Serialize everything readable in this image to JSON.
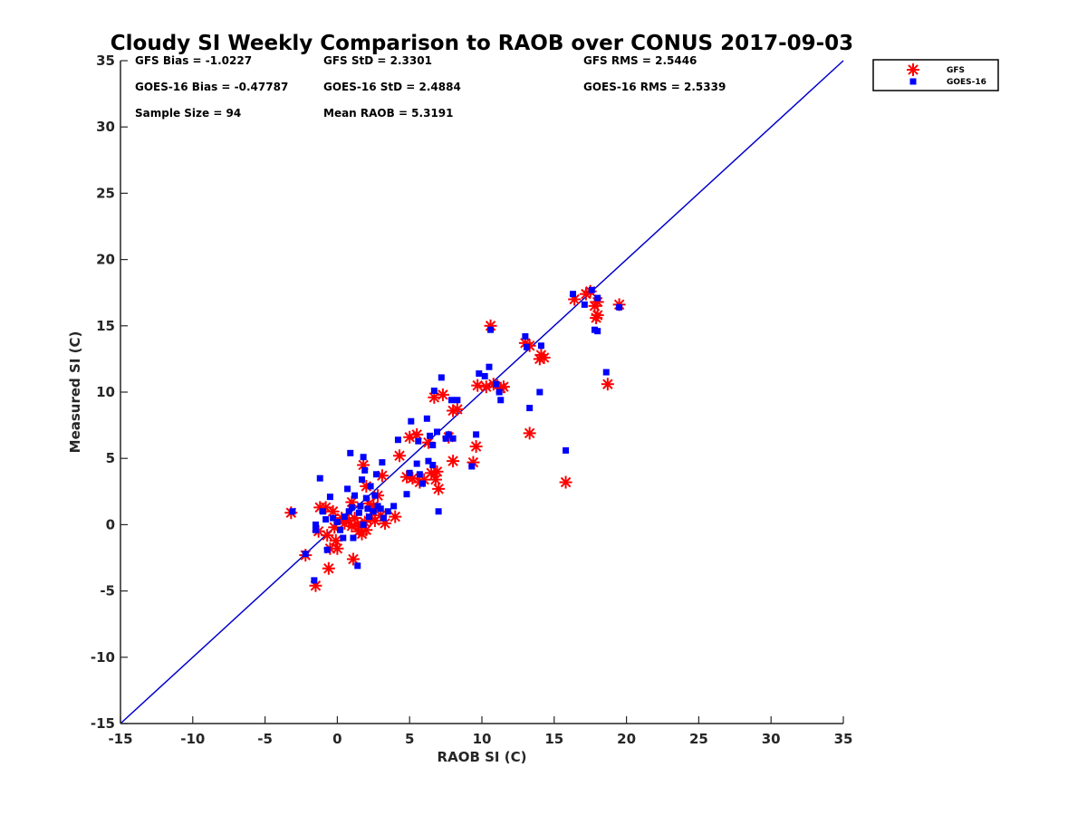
{
  "chart_data": {
    "type": "scatter",
    "title": "Cloudy SI Weekly Comparison to RAOB over CONUS 2017-09-03",
    "xlabel": "RAOB SI (C)",
    "ylabel": "Measured SI (C)",
    "xlim": [
      -15,
      35
    ],
    "ylim": [
      -15,
      35
    ],
    "xticks": [
      -15,
      -10,
      -5,
      0,
      5,
      10,
      15,
      20,
      25,
      30,
      35
    ],
    "yticks": [
      -15,
      -10,
      -5,
      0,
      5,
      10,
      15,
      20,
      25,
      30,
      35
    ],
    "reference_line": {
      "x": [
        -15,
        35
      ],
      "y": [
        -15,
        35
      ],
      "color": "#0000cc"
    },
    "legend_position": "outside-top-right",
    "stats": [
      {
        "row": 0,
        "col": 0,
        "text": "GFS Bias = -1.0227"
      },
      {
        "row": 0,
        "col": 1,
        "text": "GFS StD = 2.3301"
      },
      {
        "row": 0,
        "col": 2,
        "text": "GFS RMS = 2.5446"
      },
      {
        "row": 1,
        "col": 0,
        "text": "GOES-16 Bias = -0.47787"
      },
      {
        "row": 1,
        "col": 1,
        "text": "GOES-16 StD = 2.4884"
      },
      {
        "row": 1,
        "col": 2,
        "text": "GOES-16 RMS = 2.5339"
      },
      {
        "row": 2,
        "col": 0,
        "text": "Sample Size = 94"
      },
      {
        "row": 2,
        "col": 1,
        "text": "Mean RAOB = 5.3191"
      }
    ],
    "series": [
      {
        "name": "GFS",
        "marker": "asterisk",
        "color": "#ff0000",
        "points": [
          [
            -3.2,
            0.9
          ],
          [
            -2.2,
            -2.3
          ],
          [
            -1.5,
            -4.6
          ],
          [
            -1.3,
            -0.5
          ],
          [
            -1.2,
            1.3
          ],
          [
            -0.8,
            1.3
          ],
          [
            -0.7,
            -0.8
          ],
          [
            -0.6,
            -3.3
          ],
          [
            -0.5,
            -1.8
          ],
          [
            -0.3,
            1.0
          ],
          [
            -0.2,
            -0.2
          ],
          [
            -0.1,
            -1.2
          ],
          [
            0.0,
            -1.8
          ],
          [
            0.3,
            0.5
          ],
          [
            0.5,
            0.1
          ],
          [
            0.8,
            0.3
          ],
          [
            1.0,
            -0.1
          ],
          [
            1.0,
            1.7
          ],
          [
            1.1,
            -2.6
          ],
          [
            1.2,
            0.5
          ],
          [
            1.4,
            0.0
          ],
          [
            1.5,
            -0.5
          ],
          [
            1.7,
            -0.7
          ],
          [
            1.8,
            4.5
          ],
          [
            1.9,
            0.2
          ],
          [
            2.0,
            -0.4
          ],
          [
            2.0,
            2.9
          ],
          [
            2.2,
            1.6
          ],
          [
            2.3,
            0.5
          ],
          [
            2.5,
            1.4
          ],
          [
            2.6,
            0.3
          ],
          [
            2.8,
            2.2
          ],
          [
            3.0,
            0.7
          ],
          [
            3.1,
            3.7
          ],
          [
            3.3,
            0.1
          ],
          [
            4.0,
            0.6
          ],
          [
            4.3,
            5.2
          ],
          [
            4.8,
            3.6
          ],
          [
            5.0,
            6.6
          ],
          [
            5.2,
            3.5
          ],
          [
            5.5,
            6.8
          ],
          [
            5.7,
            3.2
          ],
          [
            6.0,
            3.4
          ],
          [
            6.3,
            6.2
          ],
          [
            6.5,
            3.9
          ],
          [
            6.7,
            9.6
          ],
          [
            6.8,
            3.4
          ],
          [
            6.9,
            4.0
          ],
          [
            7.0,
            2.7
          ],
          [
            7.3,
            9.8
          ],
          [
            7.7,
            6.6
          ],
          [
            8.0,
            4.8
          ],
          [
            8.0,
            8.6
          ],
          [
            8.3,
            8.7
          ],
          [
            9.4,
            4.7
          ],
          [
            9.6,
            5.9
          ],
          [
            9.7,
            10.5
          ],
          [
            10.3,
            10.4
          ],
          [
            10.6,
            15.0
          ],
          [
            10.8,
            10.6
          ],
          [
            11.3,
            10.3
          ],
          [
            11.5,
            10.4
          ],
          [
            13.0,
            13.7
          ],
          [
            13.3,
            6.9
          ],
          [
            13.3,
            13.5
          ],
          [
            14.0,
            12.5
          ],
          [
            14.1,
            12.8
          ],
          [
            14.3,
            12.6
          ],
          [
            15.8,
            3.2
          ],
          [
            16.4,
            17.0
          ],
          [
            17.2,
            17.4
          ],
          [
            17.5,
            17.6
          ],
          [
            17.8,
            16.5
          ],
          [
            17.9,
            15.6
          ],
          [
            18.0,
            16.8
          ],
          [
            18.0,
            15.8
          ],
          [
            18.7,
            10.6
          ],
          [
            19.5,
            16.6
          ]
        ]
      },
      {
        "name": "GOES-16",
        "marker": "square",
        "color": "#0000ff",
        "points": [
          [
            -3.1,
            1.0
          ],
          [
            -2.2,
            -2.2
          ],
          [
            -1.6,
            -4.2
          ],
          [
            -1.5,
            -0.4
          ],
          [
            -1.5,
            0.0
          ],
          [
            -1.2,
            3.5
          ],
          [
            -1.0,
            1.0
          ],
          [
            -0.8,
            0.4
          ],
          [
            -0.7,
            -1.9
          ],
          [
            -0.5,
            2.1
          ],
          [
            -0.3,
            0.5
          ],
          [
            0.0,
            0.2
          ],
          [
            0.2,
            -0.4
          ],
          [
            0.4,
            -1.0
          ],
          [
            0.5,
            0.6
          ],
          [
            0.7,
            2.7
          ],
          [
            0.8,
            1.0
          ],
          [
            0.9,
            5.4
          ],
          [
            1.0,
            1.3
          ],
          [
            1.1,
            -1.0
          ],
          [
            1.2,
            2.2
          ],
          [
            1.4,
            -3.1
          ],
          [
            1.5,
            0.9
          ],
          [
            1.6,
            1.4
          ],
          [
            1.7,
            3.4
          ],
          [
            1.8,
            5.1
          ],
          [
            1.8,
            0.0
          ],
          [
            1.9,
            4.1
          ],
          [
            2.0,
            2.0
          ],
          [
            2.1,
            1.2
          ],
          [
            2.2,
            0.6
          ],
          [
            2.3,
            2.9
          ],
          [
            2.5,
            1.0
          ],
          [
            2.6,
            2.2
          ],
          [
            2.7,
            3.8
          ],
          [
            2.8,
            1.4
          ],
          [
            3.0,
            1.2
          ],
          [
            3.1,
            4.7
          ],
          [
            3.2,
            0.5
          ],
          [
            3.5,
            1.0
          ],
          [
            3.9,
            1.4
          ],
          [
            4.2,
            6.4
          ],
          [
            4.8,
            2.3
          ],
          [
            5.0,
            3.9
          ],
          [
            5.1,
            7.8
          ],
          [
            5.5,
            4.6
          ],
          [
            5.6,
            6.3
          ],
          [
            5.7,
            3.8
          ],
          [
            5.9,
            3.1
          ],
          [
            6.2,
            8.0
          ],
          [
            6.3,
            4.8
          ],
          [
            6.4,
            6.7
          ],
          [
            6.6,
            4.5
          ],
          [
            6.6,
            6.0
          ],
          [
            6.7,
            10.1
          ],
          [
            6.9,
            7.0
          ],
          [
            7.0,
            1.0
          ],
          [
            7.2,
            11.1
          ],
          [
            7.5,
            6.5
          ],
          [
            7.7,
            6.8
          ],
          [
            7.9,
            9.4
          ],
          [
            8.0,
            6.5
          ],
          [
            8.3,
            9.4
          ],
          [
            9.3,
            4.4
          ],
          [
            9.6,
            6.8
          ],
          [
            9.8,
            11.4
          ],
          [
            10.2,
            11.2
          ],
          [
            10.5,
            11.9
          ],
          [
            10.6,
            14.7
          ],
          [
            11.0,
            10.6
          ],
          [
            11.2,
            10.0
          ],
          [
            11.3,
            9.4
          ],
          [
            13.0,
            14.2
          ],
          [
            13.1,
            13.4
          ],
          [
            13.3,
            8.8
          ],
          [
            14.0,
            10.0
          ],
          [
            14.1,
            13.5
          ],
          [
            15.8,
            5.6
          ],
          [
            16.3,
            17.4
          ],
          [
            17.1,
            16.6
          ],
          [
            17.6,
            17.7
          ],
          [
            17.8,
            14.7
          ],
          [
            18.0,
            14.6
          ],
          [
            18.0,
            17.1
          ],
          [
            18.6,
            11.5
          ],
          [
            19.5,
            16.4
          ]
        ]
      }
    ]
  }
}
